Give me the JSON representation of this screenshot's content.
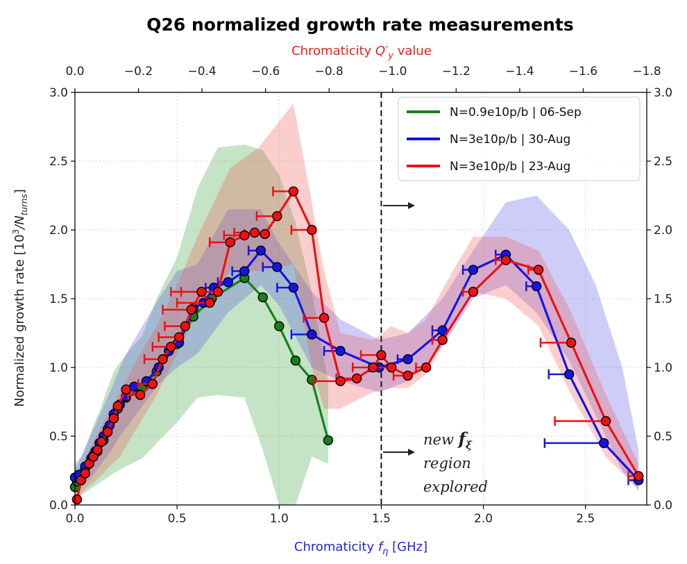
{
  "chart_data": {
    "type": "line",
    "title": "Q26 normalized growth rate measurements",
    "xlabel": "Chromaticity f_η [GHz]",
    "xlabel_parts": {
      "pre": "Chromaticity ",
      "sym": "f",
      "sub": "η",
      "post": " [GHz]"
    },
    "ylabel_parts": {
      "pre": "Normalized growth rate [10",
      "sup": "3",
      "mid": "/N",
      "sub": "turns",
      "post": "]"
    },
    "x2label_parts": {
      "pre": "Chromaticity ",
      "sym": "Q′",
      "sub": "y",
      "post": " value"
    },
    "xlim": [
      0,
      2.8
    ],
    "ylim": [
      0,
      3.0
    ],
    "x2lim": [
      0,
      -1.8
    ],
    "xticks": [
      "0.0",
      "0.5",
      "1.0",
      "1.5",
      "2.0",
      "2.5"
    ],
    "xtick_values": [
      0,
      0.5,
      1.0,
      1.5,
      2.0,
      2.5
    ],
    "yticks": [
      "0.0",
      "0.5",
      "1.0",
      "1.5",
      "2.0",
      "2.5",
      "3.0"
    ],
    "ytick_values": [
      0,
      0.5,
      1.0,
      1.5,
      2.0,
      2.5,
      3.0
    ],
    "x2ticks": [
      "0.0",
      "−0.2",
      "−0.4",
      "−0.6",
      "−0.8",
      "−1.0",
      "−1.2",
      "−1.4",
      "−1.6",
      "−1.8"
    ],
    "x2tick_values": [
      0,
      -0.2,
      -0.4,
      -0.6,
      -0.8,
      -1.0,
      -1.2,
      -1.4,
      -1.6,
      -1.8
    ],
    "grid": true,
    "legend_position": "top-right",
    "vline_x": 1.5,
    "annotation": {
      "line1_pre": "new ",
      "line1_sym": "f",
      "line1_sub": "ξ",
      "line2": "region",
      "line3": "explored"
    },
    "series": [
      {
        "name": "N=0.9e10p/b | 06-Sep",
        "color": "#1a7f1a",
        "band_color": "#2e9b2e",
        "x": [
          0.0,
          0.01,
          0.03,
          0.05,
          0.07,
          0.09,
          0.11,
          0.14,
          0.16,
          0.19,
          0.21,
          0.25,
          0.33,
          0.4,
          0.5,
          0.58,
          0.67,
          0.83,
          0.92,
          1.0,
          1.08,
          1.16,
          1.24
        ],
        "y": [
          0.13,
          0.17,
          0.22,
          0.27,
          0.3,
          0.36,
          0.39,
          0.47,
          0.55,
          0.63,
          0.7,
          0.78,
          0.85,
          0.97,
          1.17,
          1.37,
          1.5,
          1.65,
          1.51,
          1.3,
          1.05,
          0.91,
          0.47
        ],
        "band_upper": [
          0.26,
          0.34,
          0.45,
          0.58,
          0.68,
          0.85,
          0.97,
          1.1,
          1.23,
          1.5,
          1.8,
          2.3,
          2.6,
          2.62,
          2.58,
          2.4,
          2.05,
          1.55,
          0.9
        ],
        "band_lower": [
          0.04,
          0.07,
          0.1,
          0.13,
          0.16,
          0.2,
          0.23,
          0.28,
          0.34,
          0.45,
          0.6,
          0.78,
          0.8,
          0.78,
          0.4,
          0.0,
          0.0,
          0.35,
          0.3
        ],
        "band_x": [
          0.0,
          0.03,
          0.06,
          0.09,
          0.12,
          0.16,
          0.19,
          0.25,
          0.33,
          0.4,
          0.5,
          0.6,
          0.7,
          0.83,
          0.92,
          1.0,
          1.08,
          1.16,
          1.24
        ]
      },
      {
        "name": "N=3e10p/b | 30-Aug",
        "color": "#1414e6",
        "band_color": "#4a4ae6",
        "x": [
          0.0,
          0.02,
          0.05,
          0.08,
          0.1,
          0.12,
          0.14,
          0.17,
          0.19,
          0.22,
          0.25,
          0.29,
          0.35,
          0.41,
          0.46,
          0.51,
          0.58,
          0.63,
          0.68,
          0.75,
          0.83,
          0.91,
          0.99,
          1.07,
          1.16,
          1.3,
          1.49,
          1.63,
          1.8,
          1.95,
          2.11,
          2.26,
          2.42,
          2.59,
          2.76
        ],
        "y": [
          0.2,
          0.22,
          0.28,
          0.34,
          0.39,
          0.45,
          0.5,
          0.58,
          0.66,
          0.73,
          0.79,
          0.86,
          0.9,
          1.0,
          1.12,
          1.18,
          1.43,
          1.47,
          1.58,
          1.62,
          1.7,
          1.85,
          1.73,
          1.58,
          1.24,
          1.12,
          1.0,
          1.06,
          1.27,
          1.71,
          1.82,
          1.59,
          0.95,
          0.45,
          0.18
        ],
        "xerr": [
          0,
          0,
          0,
          0,
          0,
          0,
          0,
          0,
          0,
          0,
          0,
          0,
          0,
          0,
          0,
          0,
          0,
          0,
          0.04,
          0.05,
          0.06,
          0.06,
          0.07,
          0.08,
          0.1,
          0.08,
          0.05,
          0.05,
          0.05,
          0.05,
          0.05,
          0.05,
          0.1,
          0.29,
          0.05
        ],
        "band_upper": [
          0.3,
          0.35,
          0.45,
          0.55,
          0.65,
          0.75,
          0.85,
          1.0,
          1.15,
          1.3,
          1.5,
          1.7,
          1.75,
          2.15,
          2.15,
          1.9,
          1.55,
          1.35,
          1.2,
          1.25,
          1.5,
          1.85,
          2.2,
          2.25,
          2.0,
          1.6,
          1.0,
          0.4
        ],
        "band_lower": [
          0.1,
          0.12,
          0.17,
          0.22,
          0.28,
          0.34,
          0.4,
          0.5,
          0.6,
          0.72,
          0.88,
          1.0,
          1.1,
          1.4,
          1.6,
          1.45,
          1.0,
          0.9,
          0.82,
          0.9,
          1.15,
          1.5,
          1.6,
          1.4,
          1.05,
          0.65,
          0.25,
          0.1
        ],
        "band_x": [
          0.0,
          0.03,
          0.06,
          0.09,
          0.12,
          0.15,
          0.18,
          0.22,
          0.27,
          0.33,
          0.41,
          0.5,
          0.6,
          0.75,
          0.91,
          1.0,
          1.16,
          1.3,
          1.49,
          1.63,
          1.8,
          1.95,
          2.11,
          2.26,
          2.42,
          2.55,
          2.68,
          2.76
        ]
      },
      {
        "name": "N=3e10p/b | 23-Aug",
        "color": "#ee1111",
        "band_color": "#f05050",
        "x": [
          0.01,
          0.03,
          0.05,
          0.07,
          0.09,
          0.11,
          0.13,
          0.16,
          0.19,
          0.21,
          0.25,
          0.32,
          0.38,
          0.43,
          0.47,
          0.51,
          0.54,
          0.57,
          0.62,
          0.66,
          0.7,
          0.76,
          0.83,
          0.88,
          0.93,
          0.99,
          1.07,
          1.16,
          1.22,
          1.3,
          1.38,
          1.46,
          1.5,
          1.55,
          1.63,
          1.72,
          1.8,
          1.95,
          2.11,
          2.27,
          2.43,
          2.6,
          2.76
        ],
        "y": [
          0.04,
          0.18,
          0.23,
          0.3,
          0.35,
          0.4,
          0.46,
          0.53,
          0.63,
          0.72,
          0.84,
          0.8,
          0.88,
          1.06,
          1.15,
          1.22,
          1.3,
          1.42,
          1.55,
          1.47,
          1.55,
          1.91,
          1.96,
          1.98,
          1.97,
          2.1,
          2.28,
          2.0,
          1.36,
          0.9,
          0.92,
          1.0,
          1.09,
          1.0,
          0.94,
          1.0,
          1.2,
          1.55,
          1.78,
          1.71,
          1.18,
          0.61,
          0.21
        ],
        "xerr": [
          0,
          0,
          0,
          0,
          0,
          0,
          0,
          0,
          0,
          0,
          0,
          0.06,
          0.07,
          0.09,
          0.09,
          0.1,
          0.1,
          0.14,
          0.15,
          0.16,
          0.18,
          0.1,
          0.1,
          0.1,
          0.1,
          0.1,
          0.1,
          0.1,
          0.1,
          0.13,
          0.1,
          0.1,
          0.1,
          0.1,
          0.07,
          0.05,
          0.05,
          0.05,
          0.05,
          0.05,
          0.15,
          0.25,
          0.05
        ],
        "band_upper": [
          0.15,
          0.3,
          0.42,
          0.55,
          0.68,
          0.82,
          1.05,
          1.3,
          1.6,
          1.95,
          2.45,
          2.6,
          2.92,
          2.2,
          1.7,
          1.25,
          1.2,
          1.3,
          1.25,
          1.35,
          1.7,
          1.95,
          1.95,
          1.85,
          1.4,
          0.8,
          0.3
        ],
        "band_lower": [
          0.0,
          0.1,
          0.15,
          0.2,
          0.28,
          0.35,
          0.55,
          0.8,
          1.1,
          1.4,
          1.7,
          1.7,
          1.75,
          1.0,
          0.7,
          0.7,
          0.82,
          0.85,
          0.85,
          0.95,
          1.3,
          1.55,
          1.5,
          1.3,
          0.8,
          0.35,
          0.12
        ],
        "band_x": [
          0.0,
          0.04,
          0.08,
          0.12,
          0.17,
          0.22,
          0.3,
          0.4,
          0.5,
          0.6,
          0.76,
          0.9,
          1.07,
          1.16,
          1.22,
          1.3,
          1.46,
          1.55,
          1.63,
          1.72,
          1.85,
          1.95,
          2.11,
          2.27,
          2.43,
          2.6,
          2.76
        ]
      }
    ]
  }
}
